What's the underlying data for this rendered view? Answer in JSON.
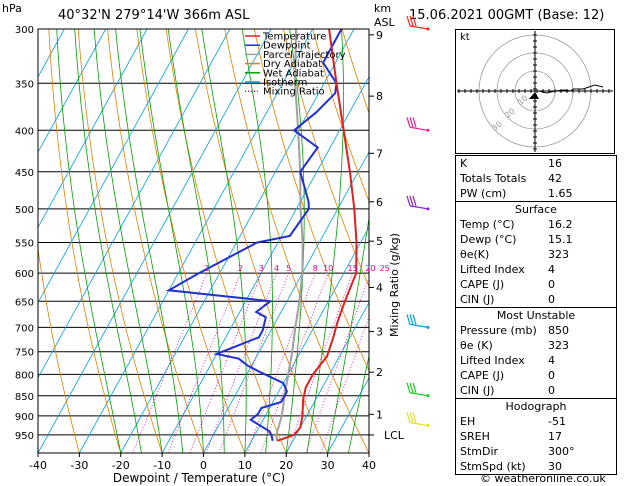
{
  "header": {
    "hpa_label": "hPa",
    "location": "40°32'N  279°14'W  366m  ASL",
    "km_label": "km",
    "asl_label": "ASL",
    "datetime": "15.06.2021  00GMT  (Base: 12)"
  },
  "chart_data": {
    "type": "line",
    "title": "",
    "xlabel": "Dewpoint / Temperature (°C)",
    "ylabel_left": "hPa",
    "ylabel_right": "Mixing Ratio (g/kg)",
    "xlim": [
      -40,
      40
    ],
    "ylim": [
      1000,
      300
    ],
    "x_ticks": [
      "-40",
      "-30",
      "-20",
      "-10",
      "0",
      "10",
      "20",
      "30",
      "40"
    ],
    "pressure_ticks": [
      "300",
      "350",
      "400",
      "450",
      "500",
      "550",
      "600",
      "650",
      "700",
      "750",
      "800",
      "850",
      "900",
      "950"
    ],
    "km_ticks": [
      {
        "label": "9",
        "p": 305
      },
      {
        "label": "8",
        "p": 363
      },
      {
        "label": "7",
        "p": 427
      },
      {
        "label": "6",
        "p": 490
      },
      {
        "label": "5",
        "p": 548
      },
      {
        "label": "4",
        "p": 625
      },
      {
        "label": "3",
        "p": 708
      },
      {
        "label": "2",
        "p": 795
      },
      {
        "label": "1",
        "p": 896
      },
      {
        "label": "LCL",
        "p": 950
      }
    ],
    "mixing_ratio_labels": [
      "1",
      "2",
      "3",
      "4",
      "5",
      "8",
      "10",
      "15",
      "20",
      "25"
    ],
    "series": [
      {
        "name": "Temperature",
        "color": "#e02020",
        "points": [
          [
            16.2,
            966
          ],
          [
            19.5,
            950
          ],
          [
            20,
            930
          ],
          [
            19,
            900
          ],
          [
            17,
            860
          ],
          [
            16,
            830
          ],
          [
            16,
            800
          ],
          [
            17,
            760
          ],
          [
            16,
            720
          ],
          [
            15,
            690
          ],
          [
            14,
            650
          ],
          [
            13,
            600
          ],
          [
            9,
            550
          ],
          [
            4,
            500
          ],
          [
            -2,
            450
          ],
          [
            -9,
            400
          ],
          [
            -17,
            350
          ],
          [
            -26,
            300
          ]
        ]
      },
      {
        "name": "Dewpoint",
        "color": "#2030d0",
        "points": [
          [
            15.1,
            966
          ],
          [
            14,
            950
          ],
          [
            13,
            940
          ],
          [
            10,
            925
          ],
          [
            7,
            910
          ],
          [
            8,
            895
          ],
          [
            8,
            880
          ],
          [
            12,
            865
          ],
          [
            12,
            840
          ],
          [
            10,
            820
          ],
          [
            3,
            795
          ],
          [
            -1,
            780
          ],
          [
            -4,
            765
          ],
          [
            -10,
            755
          ],
          [
            -2,
            720
          ],
          [
            -2,
            705
          ],
          [
            -3,
            680
          ],
          [
            -6,
            670
          ],
          [
            -4,
            650
          ],
          [
            -10,
            645
          ],
          [
            -30,
            630
          ],
          [
            -25,
            600
          ],
          [
            -15,
            550
          ],
          [
            -8,
            540
          ],
          [
            -7,
            500
          ],
          [
            -8,
            490
          ],
          [
            -14,
            450
          ],
          [
            -13,
            420
          ],
          [
            -21,
            400
          ],
          [
            -18,
            380
          ],
          [
            -16,
            360
          ],
          [
            -17,
            350
          ],
          [
            -23,
            330
          ],
          [
            -23,
            300
          ]
        ]
      },
      {
        "name": "Parcel Trajectory",
        "color": "#a0a0a0",
        "points": [
          [
            16.2,
            966
          ],
          [
            15.2,
            950
          ],
          [
            14,
            900
          ],
          [
            12,
            850
          ],
          [
            10,
            800
          ],
          [
            8,
            750
          ],
          [
            5.5,
            700
          ],
          [
            3,
            650
          ],
          [
            0,
            600
          ],
          [
            -4,
            550
          ],
          [
            -9,
            500
          ],
          [
            -14,
            450
          ],
          [
            -20,
            400
          ],
          [
            -27,
            350
          ],
          [
            -34,
            300
          ]
        ]
      }
    ],
    "legend": {
      "placement": "top-left",
      "entries": [
        {
          "label": "Temperature",
          "color": "#e02020",
          "style": "solid"
        },
        {
          "label": "Dewpoint",
          "color": "#2030d0",
          "style": "solid"
        },
        {
          "label": "Parcel Trajectory",
          "color": "#a0a0a0",
          "style": "solid"
        },
        {
          "label": "Dry Adiabat",
          "color": "#e08000",
          "style": "solid"
        },
        {
          "label": "Wet Adiabat",
          "color": "#00a000",
          "style": "solid"
        },
        {
          "label": "Isotherm",
          "color": "#00a0e0",
          "style": "solid"
        },
        {
          "label": "Mixing Ratio",
          "color": "#e000a0",
          "style": "dotted"
        }
      ]
    },
    "wind_barb_colors": [
      "#ff2020",
      "#e0209e",
      "#9020d0",
      "#00a0e0",
      "#20d020",
      "#e0e020"
    ]
  },
  "hodograph": {
    "unit_label": "kt",
    "ring_labels": [
      "10",
      "20",
      "30"
    ]
  },
  "indices": {
    "rows": [
      {
        "label": "K",
        "value": "16"
      },
      {
        "label": "Totals Totals",
        "value": "42"
      },
      {
        "label": "PW (cm)",
        "value": "1.65"
      }
    ]
  },
  "surface": {
    "title": "Surface",
    "rows": [
      {
        "label": "Temp (°C)",
        "value": "16.2"
      },
      {
        "label": "Dewp (°C)",
        "value": "15.1"
      },
      {
        "label": "θe(K)",
        "value": "323"
      },
      {
        "label": "Lifted Index",
        "value": "4"
      },
      {
        "label": "CAPE (J)",
        "value": "0"
      },
      {
        "label": "CIN (J)",
        "value": "0"
      }
    ]
  },
  "most_unstable": {
    "title": "Most Unstable",
    "rows": [
      {
        "label": "Pressure (mb)",
        "value": "850"
      },
      {
        "label": "θe (K)",
        "value": "323"
      },
      {
        "label": "Lifted Index",
        "value": "4"
      },
      {
        "label": "CAPE (J)",
        "value": "0"
      },
      {
        "label": "CIN (J)",
        "value": "0"
      }
    ]
  },
  "hodograph_table": {
    "title": "Hodograph",
    "rows": [
      {
        "label": "EH",
        "value": "-51"
      },
      {
        "label": "SREH",
        "value": "17"
      },
      {
        "label": "StmDir",
        "value": "300°"
      },
      {
        "label": "StmSpd (kt)",
        "value": "30"
      }
    ]
  },
  "watermark": "© weatheronline.co.uk"
}
